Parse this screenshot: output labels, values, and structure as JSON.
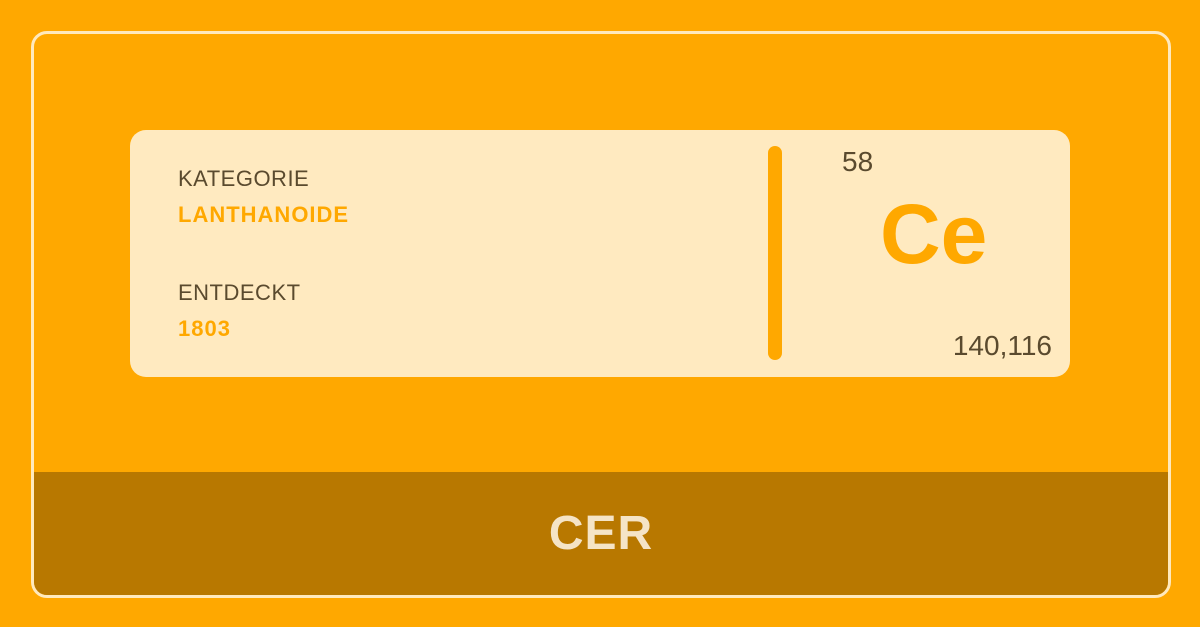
{
  "card": {
    "category_label": "KATEGORIE",
    "category_value": "LANTHANOIDE",
    "discovered_label": "ENTDECKT",
    "discovered_value": "1803",
    "atomic_number": "58",
    "symbol": "Ce",
    "atomic_mass": "140,116"
  },
  "footer": {
    "element_name": "CER"
  },
  "colors": {
    "background": "#ffa800",
    "card": "#ffeac0",
    "accent": "#ffa800",
    "footer": "#b87800",
    "text": "#5a4a2e",
    "footer_text": "#f5e4c6"
  }
}
